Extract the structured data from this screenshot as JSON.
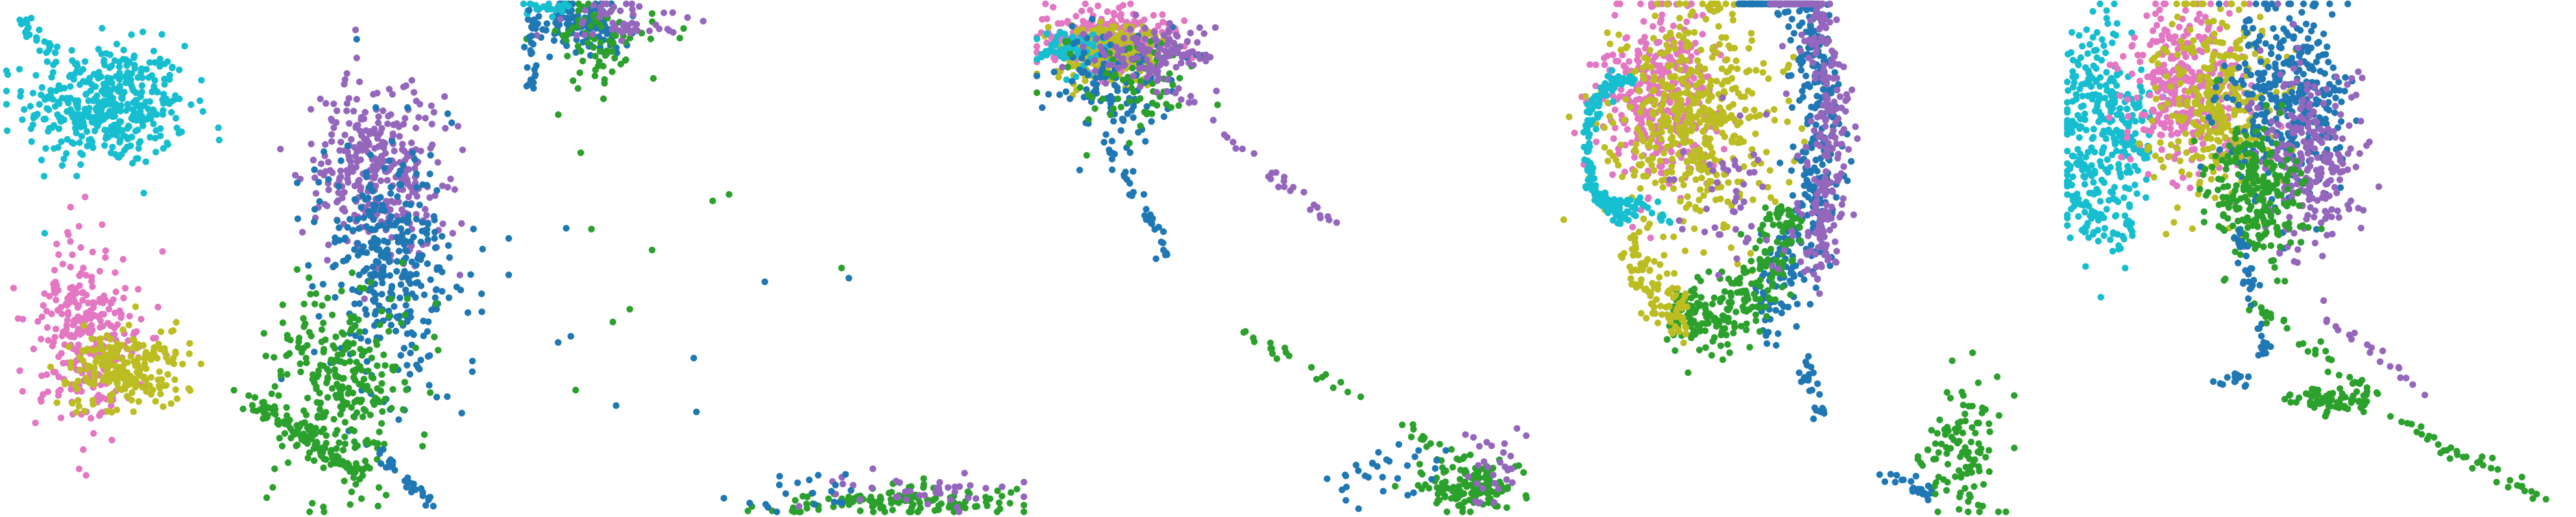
{
  "figure": {
    "palette": {
      "cyan": "#17becf",
      "pink": "#e377c2",
      "olive": "#bcbd22",
      "purple": "#9467bd",
      "blue": "#1f77b4",
      "green": "#2ca02c"
    }
  },
  "chart_data": [
    {
      "type": "scatter",
      "axes_visible": false,
      "grid": false,
      "legend": "none",
      "xlim": [
        0,
        100
      ],
      "ylim": [
        0,
        100
      ],
      "clusters": [
        {
          "color": "cyan",
          "cx": 20,
          "cy": 80,
          "sx": 8,
          "sy": 6,
          "n": 420,
          "shape": "blob"
        },
        {
          "color": "cyan",
          "x0": 2,
          "y0": 97,
          "x1": 10,
          "y1": 90,
          "n": 25,
          "shape": "line"
        },
        {
          "color": "pink",
          "cx": 16,
          "cy": 34,
          "sx": 5,
          "sy": 9,
          "n": 300,
          "shape": "blob"
        },
        {
          "color": "olive",
          "cx": 24,
          "cy": 28,
          "sx": 6,
          "sy": 4,
          "n": 220,
          "shape": "blob"
        },
        {
          "color": "purple",
          "cx": 74,
          "cy": 67,
          "sx": 7,
          "sy": 9,
          "n": 340,
          "shape": "blob"
        },
        {
          "color": "blue",
          "cx": 76,
          "cy": 48,
          "sx": 7,
          "sy": 12,
          "n": 340,
          "shape": "blob"
        },
        {
          "color": "green",
          "cx": 66,
          "cy": 24,
          "sx": 7,
          "sy": 10,
          "n": 300,
          "shape": "blob"
        },
        {
          "color": "green",
          "x0": 48,
          "y0": 22,
          "x1": 70,
          "y1": 8,
          "n": 90,
          "shape": "line"
        },
        {
          "color": "blue",
          "x0": 74,
          "y0": 12,
          "x1": 84,
          "y1": 2,
          "n": 30,
          "shape": "line"
        }
      ]
    },
    {
      "type": "scatter",
      "axes_visible": false,
      "grid": false,
      "legend": "none",
      "xlim": [
        0,
        100
      ],
      "ylim": [
        0,
        100
      ],
      "clusters": [
        {
          "color": "blue",
          "cx": 12,
          "cy": 96,
          "sx": 5,
          "sy": 3,
          "n": 120,
          "shape": "blob"
        },
        {
          "color": "green",
          "cx": 16,
          "cy": 92,
          "sx": 5,
          "sy": 5,
          "n": 80,
          "shape": "blob"
        },
        {
          "color": "purple",
          "cx": 20,
          "cy": 97,
          "sx": 6,
          "sy": 2,
          "n": 50,
          "shape": "blob"
        },
        {
          "color": "cyan",
          "x0": 1,
          "y0": 99,
          "x1": 10,
          "y1": 99,
          "n": 20,
          "shape": "line"
        },
        {
          "color": "blue",
          "x0": 2,
          "y0": 98,
          "x1": 2,
          "y1": 82,
          "n": 25,
          "shape": "line"
        },
        {
          "color": "green",
          "cx": 75,
          "cy": 2,
          "sx": 12,
          "sy": 1.5,
          "n": 130,
          "shape": "blob"
        },
        {
          "color": "purple",
          "cx": 80,
          "cy": 4,
          "sx": 12,
          "sy": 2,
          "n": 40,
          "shape": "blob"
        },
        {
          "color": "blue",
          "cx": 55,
          "cy": 3,
          "sx": 6,
          "sy": 2,
          "n": 20,
          "shape": "blob"
        },
        {
          "color": "green",
          "cx": 30,
          "cy": 55,
          "sx": 16,
          "sy": 22,
          "n": 10,
          "shape": "blob"
        },
        {
          "color": "blue",
          "cx": 40,
          "cy": 40,
          "sx": 16,
          "sy": 20,
          "n": 8,
          "shape": "blob"
        }
      ]
    },
    {
      "type": "scatter",
      "axes_visible": false,
      "grid": false,
      "legend": "none",
      "xlim": [
        0,
        100
      ],
      "ylim": [
        0,
        100
      ],
      "clusters": [
        {
          "color": "pink",
          "cx": 14,
          "cy": 93,
          "sx": 6,
          "sy": 3,
          "n": 300,
          "shape": "blob"
        },
        {
          "color": "olive",
          "cx": 13,
          "cy": 91,
          "sx": 5,
          "sy": 3,
          "n": 180,
          "shape": "blob"
        },
        {
          "color": "cyan",
          "cx": 7,
          "cy": 91,
          "sx": 3,
          "sy": 2,
          "n": 70,
          "shape": "blob"
        },
        {
          "color": "blue",
          "cx": 15,
          "cy": 84,
          "sx": 6,
          "sy": 5,
          "n": 110,
          "shape": "blob"
        },
        {
          "color": "green",
          "cx": 20,
          "cy": 84,
          "sx": 6,
          "sy": 5,
          "n": 70,
          "shape": "blob"
        },
        {
          "color": "purple",
          "cx": 24,
          "cy": 90,
          "sx": 6,
          "sy": 3,
          "n": 110,
          "shape": "blob"
        },
        {
          "color": "blue",
          "x0": 10,
          "y0": 80,
          "x1": 28,
          "y1": 48,
          "n": 40,
          "shape": "line"
        },
        {
          "color": "purple",
          "x0": 24,
          "y0": 86,
          "x1": 60,
          "y1": 56,
          "n": 35,
          "shape": "line"
        },
        {
          "color": "green",
          "x0": 40,
          "y0": 36,
          "x1": 92,
          "y1": 6,
          "n": 40,
          "shape": "line"
        },
        {
          "color": "green",
          "cx": 86,
          "cy": 5,
          "sx": 5,
          "sy": 2.5,
          "n": 140,
          "shape": "blob"
        },
        {
          "color": "blue",
          "cx": 70,
          "cy": 8,
          "sx": 6,
          "sy": 3,
          "n": 30,
          "shape": "blob"
        },
        {
          "color": "purple",
          "cx": 90,
          "cy": 10,
          "sx": 3,
          "sy": 4,
          "n": 30,
          "shape": "blob"
        }
      ]
    },
    {
      "type": "scatter",
      "axes_visible": false,
      "grid": false,
      "legend": "none",
      "xlim": [
        0,
        100
      ],
      "ylim": [
        0,
        100
      ],
      "clusters": [
        {
          "color": "pink",
          "cx": 22,
          "cy": 82,
          "sx": 6,
          "sy": 9,
          "n": 360,
          "shape": "blob"
        },
        {
          "color": "olive",
          "cx": 28,
          "cy": 78,
          "sx": 8,
          "sy": 11,
          "n": 480,
          "shape": "blob"
        },
        {
          "color": "blue",
          "cx": 34,
          "cy": 76,
          "r": 20,
          "a0": -70,
          "a1": 80,
          "w": 2.5,
          "n": 420,
          "shape": "arc"
        },
        {
          "color": "purple",
          "cx": 32,
          "cy": 76,
          "r": 24,
          "a0": -40,
          "a1": 60,
          "w": 2,
          "n": 260,
          "shape": "arc"
        },
        {
          "color": "green",
          "cx": 30,
          "cy": 72,
          "r": 18,
          "a0": -110,
          "a1": -20,
          "w": 2,
          "n": 260,
          "shape": "arc"
        },
        {
          "color": "olive",
          "cx": 30,
          "cy": 70,
          "r": 17,
          "a0": -150,
          "a1": -100,
          "w": 1.5,
          "n": 100,
          "shape": "arc"
        },
        {
          "color": "cyan",
          "cx": 14,
          "cy": 72,
          "r": 7,
          "a0": 70,
          "a1": 280,
          "w": 0.6,
          "n": 140,
          "shape": "arc"
        },
        {
          "color": "cyan",
          "x0": 9,
          "y0": 62,
          "x1": 23,
          "y1": 58,
          "n": 40,
          "shape": "line"
        },
        {
          "color": "blue",
          "x0": 50,
          "y0": 30,
          "x1": 54,
          "y1": 18,
          "n": 25,
          "shape": "line"
        },
        {
          "color": "blue",
          "x0": 66,
          "y0": 8,
          "x1": 76,
          "y1": 3,
          "n": 25,
          "shape": "line"
        },
        {
          "color": "green",
          "cx": 82,
          "cy": 12,
          "sx": 4,
          "sy": 7,
          "n": 110,
          "shape": "blob"
        },
        {
          "color": "purple",
          "cx": 38,
          "cy": 64,
          "sx": 8,
          "sy": 8,
          "n": 60,
          "shape": "blob"
        }
      ]
    },
    {
      "type": "scatter",
      "axes_visible": false,
      "grid": false,
      "legend": "none",
      "xlim": [
        0,
        100
      ],
      "ylim": [
        0,
        100
      ],
      "clusters": [
        {
          "color": "cyan",
          "cx": 10,
          "cy": 73,
          "r": 9,
          "a0": 90,
          "a1": 290,
          "w": 3,
          "n": 260,
          "shape": "arc"
        },
        {
          "color": "cyan",
          "cx": 12,
          "cy": 76,
          "sx": 3,
          "sy": 6,
          "n": 120,
          "shape": "blob"
        },
        {
          "color": "pink",
          "cx": 24,
          "cy": 84,
          "sx": 6,
          "sy": 8,
          "n": 340,
          "shape": "blob"
        },
        {
          "color": "olive",
          "cx": 30,
          "cy": 80,
          "sx": 6,
          "sy": 10,
          "n": 320,
          "shape": "blob"
        },
        {
          "color": "blue",
          "cx": 44,
          "cy": 82,
          "sx": 6,
          "sy": 10,
          "n": 340,
          "shape": "blob"
        },
        {
          "color": "purple",
          "cx": 48,
          "cy": 70,
          "sx": 5,
          "sy": 9,
          "n": 240,
          "shape": "blob"
        },
        {
          "color": "green",
          "cx": 38,
          "cy": 62,
          "sx": 5,
          "sy": 7,
          "n": 240,
          "shape": "blob"
        },
        {
          "color": "blue",
          "x0": 34,
          "y0": 55,
          "x1": 40,
          "y1": 30,
          "n": 40,
          "shape": "line"
        },
        {
          "color": "green",
          "x0": 38,
          "y0": 40,
          "x1": 62,
          "y1": 22,
          "n": 35,
          "shape": "line"
        },
        {
          "color": "green",
          "cx": 52,
          "cy": 22,
          "sx": 4,
          "sy": 1.2,
          "n": 70,
          "shape": "blob"
        },
        {
          "color": "blue",
          "cx": 34,
          "cy": 26,
          "sx": 2,
          "sy": 1,
          "n": 15,
          "shape": "blob"
        },
        {
          "color": "purple",
          "x0": 50,
          "y0": 40,
          "x1": 70,
          "y1": 24,
          "n": 20,
          "shape": "line"
        },
        {
          "color": "green",
          "x0": 62,
          "y0": 20,
          "x1": 96,
          "y1": 2,
          "n": 40,
          "shape": "line"
        }
      ]
    }
  ]
}
